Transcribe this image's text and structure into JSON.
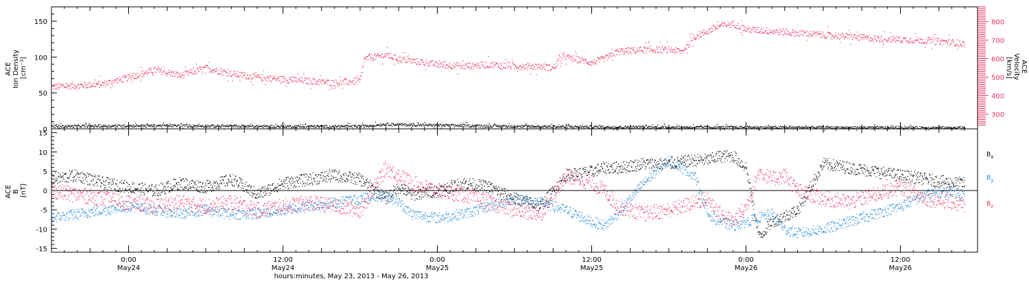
{
  "chart_data": [
    {
      "type": "scatter",
      "x_unit": "hours since 2013-05-23 00:00",
      "xlim": [
        18,
        90
      ],
      "ylabel": [
        "ACE",
        "Ion Density",
        "[cm⁻³]"
      ],
      "ylim": [
        0,
        170
      ],
      "yticks": [
        0,
        50,
        100,
        150
      ],
      "y2label": [
        "ACE",
        "Velocity",
        "[km/s]"
      ],
      "y2lim": [
        220,
        880
      ],
      "y2ticks": [
        300,
        400,
        500,
        600,
        700,
        800
      ],
      "series": [
        {
          "name": "Velocity",
          "axis": "right",
          "color": "#e8325e",
          "spread": 18,
          "x": [
            18,
            20,
            22,
            24,
            26,
            28,
            30,
            32,
            34,
            36,
            38,
            40,
            42,
            42.3,
            43,
            44,
            45,
            46,
            48,
            50,
            52,
            54,
            56,
            57,
            57.5,
            58,
            60,
            61,
            62,
            64,
            66,
            67,
            68,
            70,
            71,
            72,
            74,
            76,
            78,
            80,
            82,
            84,
            86,
            88,
            89
          ],
          "y": [
            450,
            455,
            465,
            500,
            540,
            510,
            550,
            520,
            500,
            490,
            480,
            470,
            480,
            600,
            610,
            620,
            600,
            590,
            570,
            560,
            570,
            560,
            560,
            550,
            600,
            610,
            580,
            600,
            640,
            650,
            650,
            640,
            720,
            780,
            790,
            760,
            750,
            740,
            730,
            720,
            710,
            705,
            700,
            690,
            680
          ]
        },
        {
          "name": "Ion Density",
          "axis": "left",
          "color": "#000000",
          "spread": 1.8,
          "x": [
            18,
            22,
            26,
            30,
            34,
            38,
            42,
            44,
            46,
            50,
            54,
            58,
            62,
            66,
            70,
            74,
            78,
            82,
            86,
            89
          ],
          "y": [
            4,
            4.5,
            5,
            4.5,
            4,
            3.8,
            4,
            7,
            6,
            5,
            4,
            3.5,
            3,
            2.8,
            2.6,
            2.5,
            2.4,
            2.2,
            2.1,
            2
          ]
        }
      ]
    },
    {
      "type": "scatter",
      "x_unit": "hours since 2013-05-23 00:00",
      "xlim": [
        18,
        90
      ],
      "ylabel": [
        "ACE",
        "B",
        "[nT]"
      ],
      "ylim": [
        -16,
        16
      ],
      "yticks": [
        -15,
        -10,
        -5,
        0,
        5,
        10,
        15
      ],
      "zero_line": true,
      "series": [
        {
          "name": "Bx",
          "label": "B",
          "subscript": "x",
          "color": "#000000",
          "spread": 1.6,
          "x": [
            18,
            20,
            22,
            24,
            26,
            28,
            30,
            32,
            34,
            36,
            38,
            40,
            42,
            44,
            45,
            46,
            48,
            50,
            52,
            54,
            56,
            58,
            60,
            61,
            62,
            64,
            66,
            68,
            69,
            70,
            71,
            72,
            73,
            74,
            76,
            78,
            80,
            82,
            84,
            86,
            88,
            89
          ],
          "y": [
            3,
            4,
            2,
            1,
            0,
            2,
            1,
            3,
            -1,
            2,
            3,
            4,
            3,
            -2,
            1,
            -1,
            0,
            2,
            1,
            -2,
            -4,
            4,
            5,
            6,
            6,
            7,
            7,
            8,
            8,
            9,
            9,
            6,
            -12,
            -8,
            -5,
            7,
            6,
            5,
            4,
            3,
            2,
            2
          ]
        },
        {
          "name": "By",
          "label": "B",
          "subscript": "y",
          "color": "#1e86d8",
          "spread": 1.4,
          "x": [
            18,
            20,
            22,
            24,
            26,
            28,
            30,
            32,
            34,
            36,
            38,
            40,
            42,
            44,
            45,
            46,
            48,
            50,
            52,
            54,
            56,
            58,
            60,
            61,
            62,
            64,
            66,
            68,
            69,
            70,
            71,
            72,
            73,
            74,
            75,
            76,
            78,
            80,
            82,
            84,
            86,
            88,
            89
          ],
          "y": [
            -7,
            -6,
            -5,
            -4,
            -5,
            -6,
            -5,
            -6,
            -6,
            -5,
            -4,
            -3,
            -2,
            -1,
            -3,
            -6,
            -7,
            -6,
            -4,
            -2,
            -3,
            -5,
            -8,
            -9,
            -6,
            2,
            8,
            4,
            -6,
            -8,
            -9,
            -8,
            -7,
            -6,
            -10,
            -11,
            -10,
            -8,
            -6,
            -4,
            -1,
            0,
            -1
          ]
        },
        {
          "name": "Bz",
          "label": "B",
          "subscript": "z",
          "color": "#e8325e",
          "spread": 2.0,
          "x": [
            18,
            20,
            22,
            24,
            26,
            28,
            30,
            32,
            34,
            36,
            38,
            40,
            42,
            44,
            45,
            46,
            48,
            50,
            52,
            54,
            56,
            58,
            60,
            61,
            62,
            64,
            66,
            68,
            69,
            70,
            71,
            72,
            73,
            74,
            75,
            76,
            78,
            80,
            82,
            84,
            86,
            88,
            89
          ],
          "y": [
            0,
            -1,
            -2,
            -3,
            -4,
            -3,
            -4,
            -3,
            -5,
            -4,
            -3,
            -4,
            -5,
            6,
            4,
            2,
            0,
            -1,
            -3,
            -5,
            -6,
            4,
            2,
            0,
            -4,
            -6,
            -5,
            -3,
            -2,
            -6,
            -8,
            -4,
            5,
            3,
            4,
            0,
            -2,
            -3,
            -1,
            1,
            -2,
            -3,
            -4
          ]
        }
      ]
    }
  ],
  "x_axis": {
    "ticks": [
      {
        "x": 24,
        "time": "0:00",
        "date": "May24"
      },
      {
        "x": 36,
        "time": "12:00",
        "date": "May24"
      },
      {
        "x": 48,
        "time": "0:00",
        "date": "May25"
      },
      {
        "x": 60,
        "time": "12:00",
        "date": "May25"
      },
      {
        "x": 72,
        "time": "0:00",
        "date": "May26"
      },
      {
        "x": 84,
        "time": "12:00",
        "date": "May26"
      }
    ],
    "label": "hours:minutes, May 23, 2013 - May 26, 2013"
  }
}
